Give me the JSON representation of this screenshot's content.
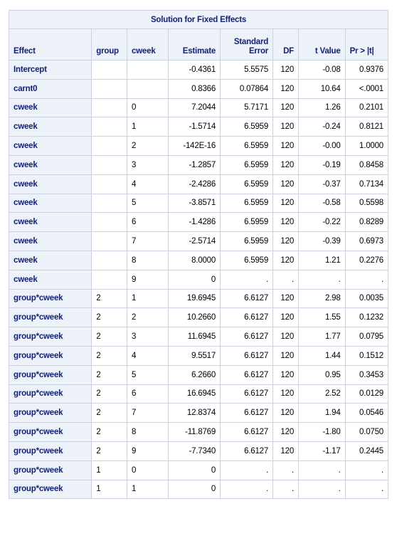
{
  "table": {
    "title": "Solution for Fixed Effects",
    "headers": {
      "effect": "Effect",
      "group": "group",
      "cweek": "cweek",
      "estimate": "Estimate",
      "stderr_line1": "Standard",
      "stderr_line2": "Error",
      "df": "DF",
      "tvalue": "t Value",
      "pvalue": "Pr > |t|"
    },
    "rows": [
      {
        "effect": "Intercept",
        "group": "",
        "cweek": "",
        "estimate": "-0.4361",
        "stderr": "5.5575",
        "df": "120",
        "t": "-0.08",
        "p": "0.9376"
      },
      {
        "effect": "carnt0",
        "group": "",
        "cweek": "",
        "estimate": "0.8366",
        "stderr": "0.07864",
        "df": "120",
        "t": "10.64",
        "p": "<.0001"
      },
      {
        "effect": "cweek",
        "group": "",
        "cweek": "0",
        "estimate": "7.2044",
        "stderr": "5.7171",
        "df": "120",
        "t": "1.26",
        "p": "0.2101"
      },
      {
        "effect": "cweek",
        "group": "",
        "cweek": "1",
        "estimate": "-1.5714",
        "stderr": "6.5959",
        "df": "120",
        "t": "-0.24",
        "p": "0.8121"
      },
      {
        "effect": "cweek",
        "group": "",
        "cweek": "2",
        "estimate": "-142E-16",
        "stderr": "6.5959",
        "df": "120",
        "t": "-0.00",
        "p": "1.0000"
      },
      {
        "effect": "cweek",
        "group": "",
        "cweek": "3",
        "estimate": "-1.2857",
        "stderr": "6.5959",
        "df": "120",
        "t": "-0.19",
        "p": "0.8458"
      },
      {
        "effect": "cweek",
        "group": "",
        "cweek": "4",
        "estimate": "-2.4286",
        "stderr": "6.5959",
        "df": "120",
        "t": "-0.37",
        "p": "0.7134"
      },
      {
        "effect": "cweek",
        "group": "",
        "cweek": "5",
        "estimate": "-3.8571",
        "stderr": "6.5959",
        "df": "120",
        "t": "-0.58",
        "p": "0.5598"
      },
      {
        "effect": "cweek",
        "group": "",
        "cweek": "6",
        "estimate": "-1.4286",
        "stderr": "6.5959",
        "df": "120",
        "t": "-0.22",
        "p": "0.8289"
      },
      {
        "effect": "cweek",
        "group": "",
        "cweek": "7",
        "estimate": "-2.5714",
        "stderr": "6.5959",
        "df": "120",
        "t": "-0.39",
        "p": "0.6973"
      },
      {
        "effect": "cweek",
        "group": "",
        "cweek": "8",
        "estimate": "8.0000",
        "stderr": "6.5959",
        "df": "120",
        "t": "1.21",
        "p": "0.2276"
      },
      {
        "effect": "cweek",
        "group": "",
        "cweek": "9",
        "estimate": "0",
        "stderr": ".",
        "df": ".",
        "t": ".",
        "p": "."
      },
      {
        "effect": "group*cweek",
        "group": "2",
        "cweek": "1",
        "estimate": "19.6945",
        "stderr": "6.6127",
        "df": "120",
        "t": "2.98",
        "p": "0.0035"
      },
      {
        "effect": "group*cweek",
        "group": "2",
        "cweek": "2",
        "estimate": "10.2660",
        "stderr": "6.6127",
        "df": "120",
        "t": "1.55",
        "p": "0.1232"
      },
      {
        "effect": "group*cweek",
        "group": "2",
        "cweek": "3",
        "estimate": "11.6945",
        "stderr": "6.6127",
        "df": "120",
        "t": "1.77",
        "p": "0.0795"
      },
      {
        "effect": "group*cweek",
        "group": "2",
        "cweek": "4",
        "estimate": "9.5517",
        "stderr": "6.6127",
        "df": "120",
        "t": "1.44",
        "p": "0.1512"
      },
      {
        "effect": "group*cweek",
        "group": "2",
        "cweek": "5",
        "estimate": "6.2660",
        "stderr": "6.6127",
        "df": "120",
        "t": "0.95",
        "p": "0.3453"
      },
      {
        "effect": "group*cweek",
        "group": "2",
        "cweek": "6",
        "estimate": "16.6945",
        "stderr": "6.6127",
        "df": "120",
        "t": "2.52",
        "p": "0.0129"
      },
      {
        "effect": "group*cweek",
        "group": "2",
        "cweek": "7",
        "estimate": "12.8374",
        "stderr": "6.6127",
        "df": "120",
        "t": "1.94",
        "p": "0.0546"
      },
      {
        "effect": "group*cweek",
        "group": "2",
        "cweek": "8",
        "estimate": "-11.8769",
        "stderr": "6.6127",
        "df": "120",
        "t": "-1.80",
        "p": "0.0750"
      },
      {
        "effect": "group*cweek",
        "group": "2",
        "cweek": "9",
        "estimate": "-7.7340",
        "stderr": "6.6127",
        "df": "120",
        "t": "-1.17",
        "p": "0.2445"
      },
      {
        "effect": "group*cweek",
        "group": "1",
        "cweek": "0",
        "estimate": "0",
        "stderr": ".",
        "df": ".",
        "t": ".",
        "p": "."
      },
      {
        "effect": "group*cweek",
        "group": "1",
        "cweek": "1",
        "estimate": "0",
        "stderr": ".",
        "df": ".",
        "t": ".",
        "p": "."
      }
    ]
  }
}
